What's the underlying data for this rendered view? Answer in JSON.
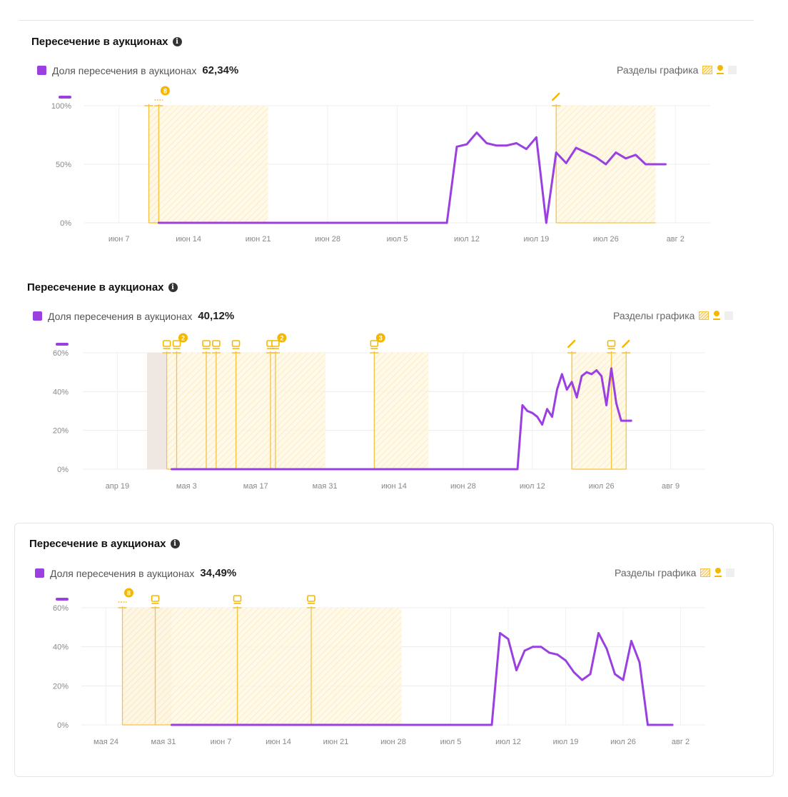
{
  "info_glyph": "i",
  "colors": {
    "series": "#9b40e0",
    "annotation": "#f5c242",
    "badge": "#f5b800",
    "grid": "#ececec",
    "shade": "#efe8e2"
  },
  "panels": [
    {
      "title": "Пересечение в аукционах",
      "legend_label": "Доля пересечения в аукционах",
      "legend_value": "62,34%",
      "sections_label": "Разделы графика"
    },
    {
      "title": "Пересечение в аукционах",
      "legend_label": "Доля пересечения в аукционах",
      "legend_value": "40,12%",
      "sections_label": "Разделы графика"
    },
    {
      "title": "Пересечение в аукционах",
      "legend_label": "Доля пересечения в аукционах",
      "legend_value": "34,49%",
      "sections_label": "Разделы графика"
    }
  ],
  "chart_data": [
    {
      "type": "line",
      "x_unit": "day (0 = июн 7)",
      "y_ticks": [
        "0%",
        "50%",
        "100%"
      ],
      "ylim": [
        0,
        100
      ],
      "x_ticks": [
        {
          "x": 0,
          "label": "июн 7"
        },
        {
          "x": 7,
          "label": "июн 14"
        },
        {
          "x": 14,
          "label": "июн 21"
        },
        {
          "x": 21,
          "label": "июн 28"
        },
        {
          "x": 28,
          "label": "июл 5"
        },
        {
          "x": 35,
          "label": "июл 12"
        },
        {
          "x": 42,
          "label": "июл 19"
        },
        {
          "x": 49,
          "label": "июл 26"
        },
        {
          "x": 56,
          "label": "авг 2"
        }
      ],
      "xlim": [
        -3.5,
        59.5
      ],
      "grid": true,
      "series": [
        {
          "x": [
            4,
            33,
            34,
            35,
            36,
            37,
            38,
            39,
            40,
            41,
            42,
            43,
            44,
            45,
            46,
            47,
            48,
            49,
            50,
            51,
            52,
            53,
            54,
            55
          ],
          "y": [
            0,
            0,
            65,
            67,
            77,
            68,
            66,
            66,
            68,
            63,
            73,
            0,
            60,
            51,
            64,
            60,
            56,
            50,
            60,
            55,
            58,
            50,
            50,
            50
          ]
        }
      ],
      "shaded": [],
      "hatched": [
        [
          3,
          4
        ],
        [
          3,
          15
        ],
        [
          44,
          54
        ]
      ],
      "lines": [
        3,
        4,
        44
      ],
      "badges": [
        {
          "x": 4,
          "count": "8",
          "icon": "flag"
        },
        {
          "x": 44,
          "count": "",
          "icon": "pencil"
        }
      ]
    },
    {
      "type": "line",
      "x_unit": "day (0 = апр 19)",
      "y_ticks": [
        "0%",
        "20%",
        "40%",
        "60%"
      ],
      "ylim": [
        0,
        60
      ],
      "x_ticks": [
        {
          "x": 0,
          "label": "апр 19"
        },
        {
          "x": 14,
          "label": "мая 3"
        },
        {
          "x": 28,
          "label": "мая 17"
        },
        {
          "x": 42,
          "label": "мая 31"
        },
        {
          "x": 56,
          "label": "июн 14"
        },
        {
          "x": 70,
          "label": "июн 28"
        },
        {
          "x": 84,
          "label": "июл 12"
        },
        {
          "x": 98,
          "label": "июл 26"
        },
        {
          "x": 112,
          "label": "авг 9"
        }
      ],
      "xlim": [
        -7,
        119
      ],
      "grid": true,
      "series": [
        {
          "x": [
            11,
            81,
            82,
            83,
            84,
            85,
            86,
            87,
            88,
            89,
            90,
            91,
            92,
            93,
            94,
            95,
            96,
            97,
            98,
            99,
            100,
            101,
            102,
            103,
            104
          ],
          "y": [
            0,
            0,
            33,
            30,
            29,
            27,
            23,
            31,
            27,
            41,
            49,
            41,
            45,
            37,
            48,
            50,
            49,
            51,
            48,
            33,
            52,
            34,
            25,
            25,
            25
          ]
        }
      ],
      "shaded": [
        [
          6,
          10
        ]
      ],
      "hatched": [
        [
          10,
          42
        ],
        [
          52,
          63
        ],
        [
          92,
          103
        ]
      ],
      "lines": [
        10,
        12,
        18,
        20,
        24,
        31,
        32,
        52,
        92,
        100,
        103
      ],
      "badges": [
        {
          "x": 10,
          "count": "",
          "icon": "doc"
        },
        {
          "x": 12,
          "count": "2",
          "icon": "doc"
        },
        {
          "x": 18,
          "count": "",
          "icon": "doc"
        },
        {
          "x": 20,
          "count": "",
          "icon": "doc"
        },
        {
          "x": 24,
          "count": "",
          "icon": "doc"
        },
        {
          "x": 31,
          "count": "",
          "icon": "doc"
        },
        {
          "x": 32,
          "count": "2",
          "icon": "doc"
        },
        {
          "x": 52,
          "count": "3",
          "icon": "doc"
        },
        {
          "x": 92,
          "count": "",
          "icon": "pencil"
        },
        {
          "x": 100,
          "count": "",
          "icon": "doc"
        },
        {
          "x": 103,
          "count": "",
          "icon": "pencil"
        }
      ]
    },
    {
      "type": "line",
      "x_unit": "day (0 = мая 24)",
      "y_ticks": [
        "0%",
        "20%",
        "40%",
        "60%"
      ],
      "ylim": [
        0,
        60
      ],
      "x_ticks": [
        {
          "x": 0,
          "label": "мая 24"
        },
        {
          "x": 7,
          "label": "мая 31"
        },
        {
          "x": 14,
          "label": "июн 7"
        },
        {
          "x": 21,
          "label": "июн 14"
        },
        {
          "x": 28,
          "label": "июн 21"
        },
        {
          "x": 35,
          "label": "июн 28"
        },
        {
          "x": 42,
          "label": "июл 5"
        },
        {
          "x": 49,
          "label": "июл 12"
        },
        {
          "x": 56,
          "label": "июл 19"
        },
        {
          "x": 63,
          "label": "июл 26"
        },
        {
          "x": 70,
          "label": "авг 2"
        }
      ],
      "xlim": [
        -3,
        73
      ],
      "grid": true,
      "series": [
        {
          "x": [
            8,
            47,
            48,
            49,
            50,
            51,
            52,
            53,
            54,
            55,
            56,
            57,
            58,
            59,
            60,
            61,
            62,
            63,
            64,
            65,
            66,
            67,
            68,
            69
          ],
          "y": [
            0,
            0,
            47,
            44,
            28,
            38,
            40,
            40,
            37,
            36,
            33,
            27,
            23,
            26,
            47,
            39,
            26,
            23,
            43,
            32,
            0,
            0,
            0,
            0
          ]
        }
      ],
      "shaded": [
        [
          2,
          8
        ]
      ],
      "hatched": [
        [
          2,
          36
        ]
      ],
      "lines": [
        2,
        6,
        16,
        25
      ],
      "badges": [
        {
          "x": 2,
          "count": "8",
          "icon": "flag"
        },
        {
          "x": 6,
          "count": "",
          "icon": "doc"
        },
        {
          "x": 16,
          "count": "",
          "icon": "doc"
        },
        {
          "x": 25,
          "count": "",
          "icon": "doc"
        }
      ]
    }
  ]
}
